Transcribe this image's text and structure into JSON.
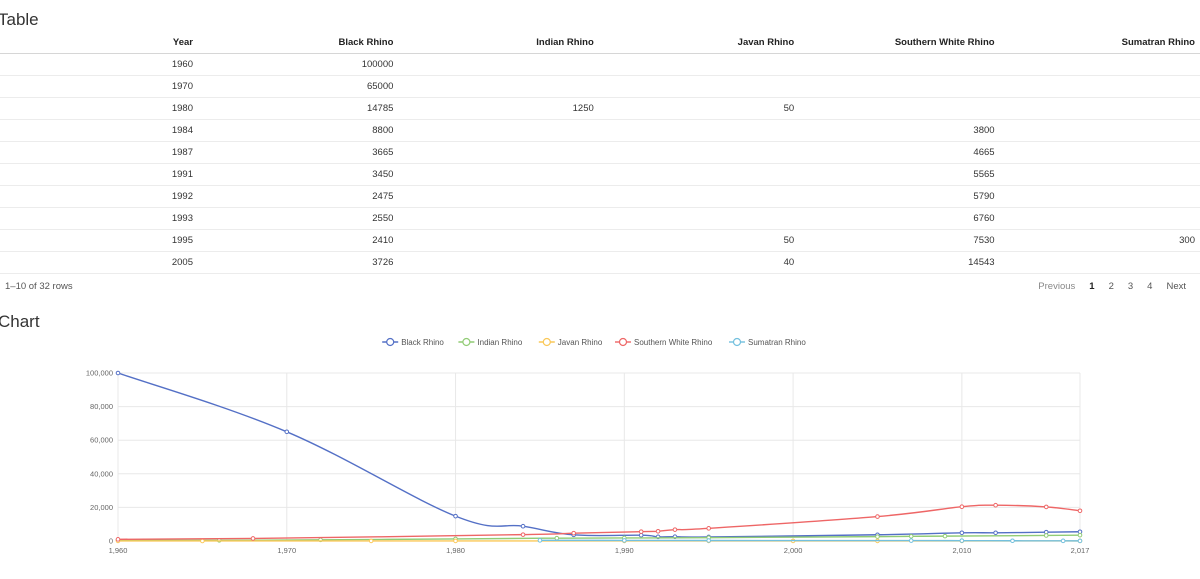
{
  "table_section": {
    "title": "Table",
    "columns": [
      "Year",
      "Black Rhino",
      "Indian Rhino",
      "Javan Rhino",
      "Southern White Rhino",
      "Sumatran Rhino"
    ],
    "rows": [
      [
        "1960",
        "100000",
        "",
        "",
        "",
        ""
      ],
      [
        "1970",
        "65000",
        "",
        "",
        "",
        ""
      ],
      [
        "1980",
        "14785",
        "1250",
        "50",
        "",
        ""
      ],
      [
        "1984",
        "8800",
        "",
        "",
        "3800",
        ""
      ],
      [
        "1987",
        "3665",
        "",
        "",
        "4665",
        ""
      ],
      [
        "1991",
        "3450",
        "",
        "",
        "5565",
        ""
      ],
      [
        "1992",
        "2475",
        "",
        "",
        "5790",
        ""
      ],
      [
        "1993",
        "2550",
        "",
        "",
        "6760",
        ""
      ],
      [
        "1995",
        "2410",
        "",
        "50",
        "7530",
        "300"
      ],
      [
        "2005",
        "3726",
        "",
        "40",
        "14543",
        ""
      ]
    ],
    "pagination": {
      "info": "1–10 of 32 rows",
      "previous": "Previous",
      "pages": [
        "1",
        "2",
        "3",
        "4"
      ],
      "active_page": "1",
      "next": "Next"
    }
  },
  "chart_section": {
    "title": "Chart"
  },
  "chart_data": {
    "type": "line",
    "title": "",
    "xlabel": "",
    "ylabel": "",
    "xlim": [
      1960,
      2017
    ],
    "ylim": [
      0,
      100000
    ],
    "x_ticks": [
      1960,
      1970,
      1980,
      1990,
      2000,
      2010,
      2017
    ],
    "y_ticks": [
      0,
      20000,
      40000,
      60000,
      80000,
      100000
    ],
    "grid": true,
    "legend": "top",
    "series": [
      {
        "name": "Black Rhino",
        "color": "#5470c6",
        "points": [
          [
            1960,
            100000
          ],
          [
            1970,
            65000
          ],
          [
            1980,
            14785
          ],
          [
            1984,
            8800
          ],
          [
            1987,
            3665
          ],
          [
            1991,
            3450
          ],
          [
            1992,
            2475
          ],
          [
            1993,
            2550
          ],
          [
            1995,
            2410
          ],
          [
            2005,
            3726
          ],
          [
            2010,
            4880
          ],
          [
            2012,
            4880
          ],
          [
            2015,
            5250
          ],
          [
            2017,
            5500
          ]
        ]
      },
      {
        "name": "Indian Rhino",
        "color": "#91cc75",
        "points": [
          [
            1960,
            600
          ],
          [
            1966,
            400
          ],
          [
            1972,
            700
          ],
          [
            1980,
            1250
          ],
          [
            1986,
            1700
          ],
          [
            1990,
            1800
          ],
          [
            1995,
            2000
          ],
          [
            2005,
            2600
          ],
          [
            2007,
            2800
          ],
          [
            2009,
            2900
          ],
          [
            2015,
            3300
          ],
          [
            2017,
            3500
          ]
        ]
      },
      {
        "name": "Javan Rhino",
        "color": "#fac858",
        "points": [
          [
            1960,
            40
          ],
          [
            1965,
            30
          ],
          [
            1975,
            50
          ],
          [
            1980,
            50
          ],
          [
            1990,
            50
          ],
          [
            1995,
            50
          ],
          [
            2000,
            60
          ],
          [
            2005,
            40
          ],
          [
            2010,
            40
          ],
          [
            2017,
            60
          ]
        ]
      },
      {
        "name": "Southern White Rhino",
        "color": "#ee6666",
        "points": [
          [
            1960,
            1000
          ],
          [
            1968,
            1500
          ],
          [
            1984,
            3800
          ],
          [
            1987,
            4665
          ],
          [
            1991,
            5565
          ],
          [
            1992,
            5790
          ],
          [
            1993,
            6760
          ],
          [
            1995,
            7530
          ],
          [
            2005,
            14543
          ],
          [
            2010,
            20400
          ],
          [
            2012,
            21300
          ],
          [
            2015,
            20300
          ],
          [
            2017,
            18000
          ]
        ]
      },
      {
        "name": "Sumatran Rhino",
        "color": "#73c0de",
        "points": [
          [
            1985,
            400
          ],
          [
            1990,
            350
          ],
          [
            1995,
            300
          ],
          [
            2007,
            250
          ],
          [
            2010,
            200
          ],
          [
            2013,
            150
          ],
          [
            2016,
            100
          ],
          [
            2017,
            80
          ]
        ]
      }
    ]
  }
}
